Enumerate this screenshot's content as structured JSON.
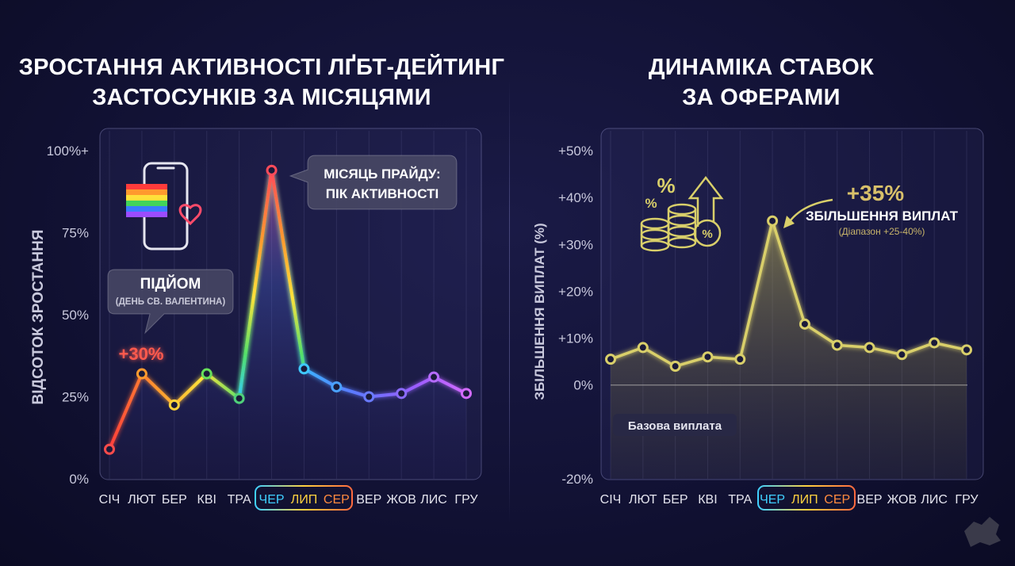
{
  "left": {
    "title_line1": "ЗРОСТАННЯ АКТИВНОСТІ ЛҐБТ-ДЕЙТИНГ",
    "title_line2": "ЗАСТОСУНКІВ ЗА МІСЯЦЯМИ",
    "callout_rise_title": "ПІДЙОМ",
    "callout_rise_sub": "(ДЕНЬ СВ. ВАЛЕНТИНА)",
    "rise_value": "+30%",
    "callout_pride_line1": "МІСЯЦЬ ПРАЙДУ:",
    "callout_pride_line2": "ПІК АКТИВНОСТІ",
    "icon": "phone-rainbow-flag-heart-icon"
  },
  "right": {
    "title_line1": "ДИНАМІКА СТАВОК",
    "title_line2": "ЗА ОФЕРАМИ",
    "peak_value": "+35%",
    "peak_label": "ЗБІЛЬШЕННЯ ВИПЛАТ",
    "peak_range": "(Діапазон +25-40%)",
    "baseline_label": "Базова виплата",
    "icon": "coins-percent-arrow-icon"
  },
  "colors": {
    "background": "#121235",
    "gold": "#d9cf6a",
    "gold_text": "#d8c06a",
    "rise_red": "#ff5a4e",
    "summer_highlight": [
      "#3fd0ff",
      "#ffd23f",
      "#ff6a3f"
    ]
  },
  "chart_data": [
    {
      "type": "line",
      "title": "ЗРОСТАННЯ АКТИВНОСТІ ЛҐБТ-ДЕЙТИНГ ЗАСТОСУНКІВ ЗА МІСЯЦЯМИ",
      "ylabel": "ВІДСОТОК ЗРОСТАННЯ",
      "xlabel": "",
      "categories": [
        "СІЧ",
        "ЛЮТ",
        "БЕР",
        "КВІ",
        "ТРА",
        "ЧЕР",
        "ЛИП",
        "СЕР",
        "ВЕР",
        "ЖОВ",
        "ЛИС",
        "ГРУ"
      ],
      "highlighted_categories": [
        "ЧЕР",
        "ЛИП",
        "СЕР"
      ],
      "values": [
        9,
        32,
        22.5,
        32,
        24.5,
        94,
        33.5,
        28,
        25,
        26,
        31,
        26
      ],
      "yticks": [
        "0%",
        "25%",
        "50%",
        "75%",
        "100%+"
      ],
      "ytick_values": [
        0,
        25,
        50,
        75,
        100
      ],
      "ylim": [
        0,
        100
      ],
      "grid": "vertical",
      "line_style": "rainbow gradient"
    },
    {
      "type": "line",
      "title": "ДИНАМІКА СТАВОК ЗА ОФЕРАМИ",
      "ylabel": "ЗБІЛЬШЕННЯ ВИПЛАТ (%)",
      "xlabel": "",
      "categories": [
        "СІЧ",
        "ЛЮТ",
        "БЕР",
        "КВІ",
        "ТРА",
        "ЧЕР",
        "ЛИП",
        "СЕР",
        "ВЕР",
        "ЖОВ",
        "ЛИС",
        "ГРУ"
      ],
      "highlighted_categories": [
        "ЧЕР",
        "ЛИП",
        "СЕР"
      ],
      "values": [
        5.5,
        8,
        4,
        6,
        5.5,
        35,
        13,
        8.5,
        8,
        6.5,
        9,
        7.5
      ],
      "yticks": [
        "-20%",
        "0%",
        "+10%",
        "+20%",
        "+30%",
        "+40%",
        "+50%"
      ],
      "ytick_values": [
        -20,
        0,
        10,
        20,
        30,
        40,
        50
      ],
      "ylim": [
        -20,
        50
      ],
      "baseline": 0,
      "grid": "vertical"
    }
  ]
}
